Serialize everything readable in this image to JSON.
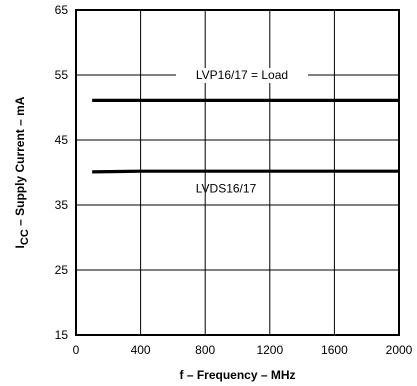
{
  "chart_data": {
    "type": "line",
    "title": "",
    "xlabel": "f – Frequency – MHz",
    "ylabel_main": "I",
    "ylabel_sub": "CC",
    "ylabel_rest": " – Supply Current – mA",
    "xlim": [
      0,
      2000
    ],
    "ylim": [
      15,
      65
    ],
    "x_ticks": [
      "0",
      "400",
      "800",
      "1200",
      "1600",
      "2000"
    ],
    "y_ticks": [
      "15",
      "25",
      "35",
      "45",
      "55",
      "65"
    ],
    "grid": true,
    "series": [
      {
        "name": "LVP16/17 = Load",
        "x": [
          100,
          400,
          800,
          1200,
          1600,
          2000
        ],
        "y": [
          51.1,
          51.1,
          51.1,
          51.1,
          51.1,
          51.1
        ]
      },
      {
        "name": "LVDS16/17",
        "x": [
          100,
          400,
          800,
          1200,
          1600,
          2000
        ],
        "y": [
          40.1,
          40.2,
          40.2,
          40.2,
          40.2,
          40.2
        ]
      }
    ],
    "annotations": [
      "LVP16/17 = Load",
      "LVDS16/17"
    ]
  }
}
